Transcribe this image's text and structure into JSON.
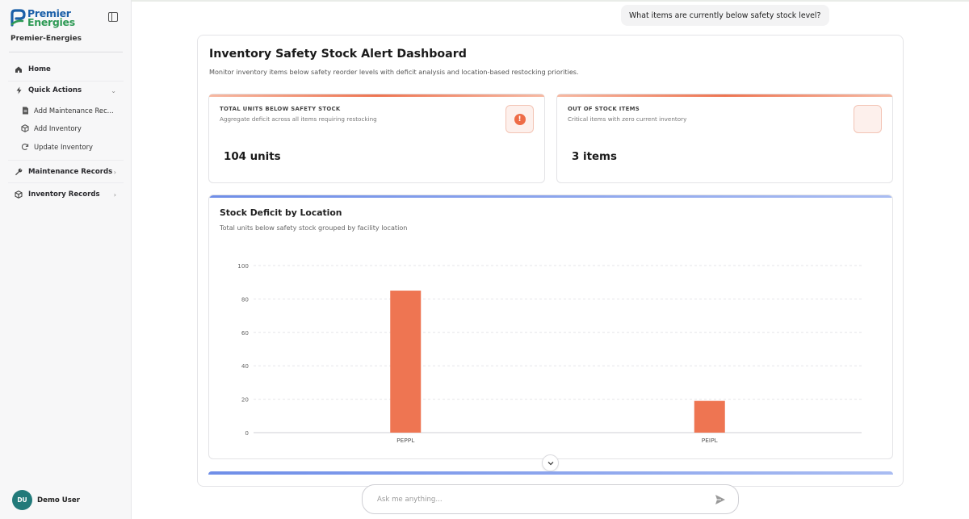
{
  "brand": {
    "line1": "Premier",
    "line2": "Energies",
    "org": "Premier-Energies"
  },
  "sidebar": {
    "home": "Home",
    "quick_actions": "Quick Actions",
    "sub_items": [
      {
        "label": "Add Maintenance Rec...",
        "icon": "document-icon"
      },
      {
        "label": "Add Inventory",
        "icon": "box-icon"
      },
      {
        "label": "Update Inventory",
        "icon": "refresh-icon"
      }
    ],
    "maintenance_records": "Maintenance Records",
    "inventory_records": "Inventory Records"
  },
  "user": {
    "initials": "DU",
    "name": "Demo User"
  },
  "chat": {
    "question": "What items are currently below safety stock level?",
    "input_placeholder": "Ask me anything..."
  },
  "dashboard": {
    "title": "Inventory Safety Stock Alert Dashboard",
    "subtitle": "Monitor inventory items below safety reorder levels with deficit analysis and location-based restocking priorities.",
    "kpis": [
      {
        "label": "Total Units Below Safety Stock",
        "description": "Aggregate deficit across all items requiring restocking",
        "value": "104 units",
        "icon": "alert-icon"
      },
      {
        "label": "Out of Stock Items",
        "description": "Critical items with zero current inventory",
        "value": "3 items",
        "icon": "empty-icon"
      }
    ]
  },
  "colors": {
    "accent": "#ee7552",
    "bar": "#ee7552",
    "chart_top": "#6f8ee8",
    "avatar": "#227a7a"
  },
  "chart_data": {
    "type": "bar",
    "title": "Stock Deficit by Location",
    "subtitle": "Total units below safety stock grouped by facility location",
    "categories": [
      "PEPPL",
      "PEIPL"
    ],
    "values": [
      85,
      19
    ],
    "ylim": [
      0,
      100
    ],
    "yticks": [
      0,
      20,
      40,
      60,
      80,
      100
    ],
    "grid": true
  }
}
